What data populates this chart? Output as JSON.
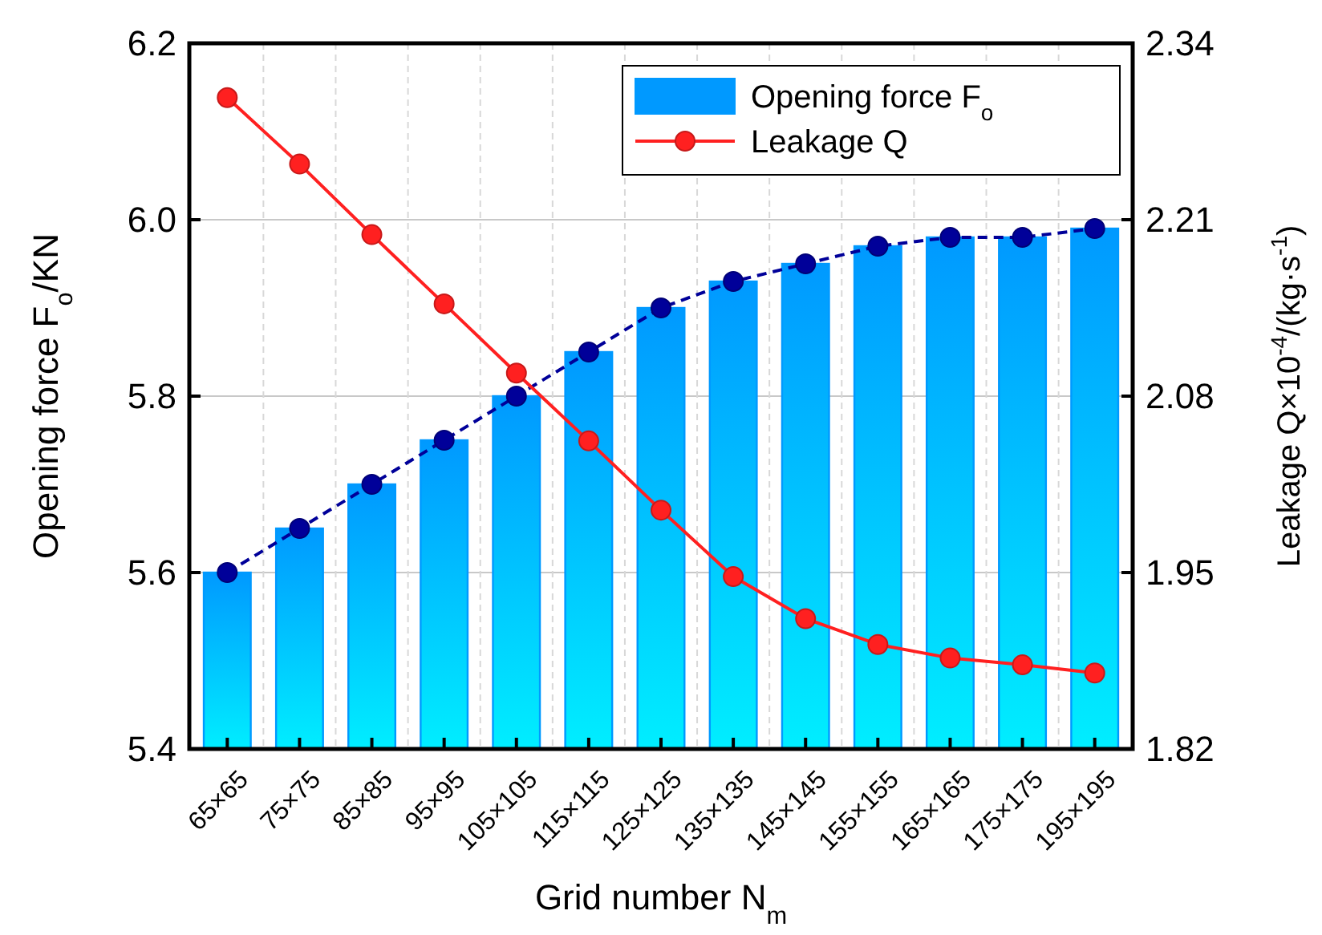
{
  "chart_data": {
    "type": "bar",
    "xlabel": "Grid number N$_{m}$",
    "ylabel": "Opening force F$_{o}$/KN",
    "y2label": "Leakage Q×10$^{-4}$/(kg·s$^{-1}$)",
    "categories": [
      "65×65",
      "75×75",
      "85×85",
      "95×95",
      "105×105",
      "115×115",
      "125×125",
      "135×135",
      "145×145",
      "155×155",
      "165×165",
      "175×175",
      "195×195"
    ],
    "series": [
      {
        "name": "Opening force F$_{o}$",
        "color": "#0099ff",
        "values": [
          5.6,
          5.65,
          5.7,
          5.75,
          5.8,
          5.85,
          5.9,
          5.93,
          5.95,
          5.97,
          5.98,
          5.98,
          5.99
        ]
      },
      {
        "type": "line",
        "color": "#000099",
        "line_style": "dashed",
        "marker": "circle",
        "values": [
          5.6,
          5.65,
          5.7,
          5.75,
          5.8,
          5.85,
          5.9,
          5.93,
          5.95,
          5.97,
          5.98,
          5.98,
          5.99
        ]
      },
      {
        "name": "Leakage Q",
        "type": "line",
        "color": "#ff2020",
        "line_style": "solid",
        "marker": "circle",
        "axis": "y2",
        "values": [
          2.3,
          2.251,
          2.199,
          2.148,
          2.097,
          2.047,
          1.996,
          1.947,
          1.916,
          1.897,
          1.887,
          1.882,
          1.876
        ]
      }
    ],
    "ylim": [
      5.4,
      6.2
    ],
    "yticks": [
      5.4,
      5.6,
      5.8,
      {
        "value": 6,
        "label": "6.0"
      },
      6.2
    ],
    "y2lim": [
      1.82,
      2.34
    ],
    "y2ticks": [
      1.82,
      1.95,
      2.08,
      2.21,
      2.34
    ],
    "grid": true,
    "legend": "top right"
  }
}
